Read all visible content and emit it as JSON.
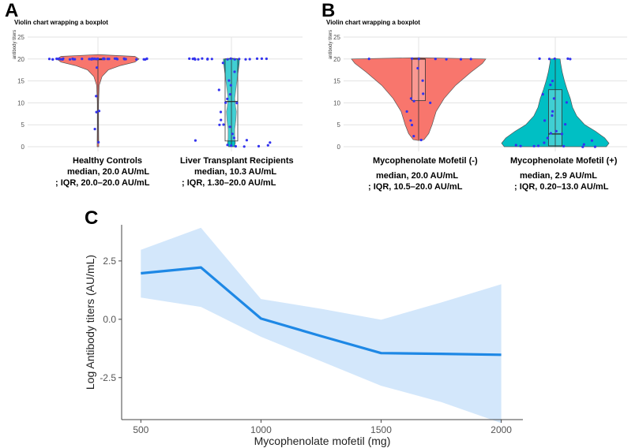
{
  "colors": {
    "red": "#F8766D",
    "teal": "#00BFC4",
    "dot": "#3333ee",
    "ribbon": "#d3e7fb",
    "line": "#1e88e5",
    "grid": "#e3e3e3"
  },
  "panelA": {
    "label": "A",
    "title": "Violin chart wrapping a boxplot",
    "ylabel": "antibody titers",
    "ticks": [
      "0",
      "5",
      "10",
      "15",
      "20",
      "25"
    ],
    "groups": [
      {
        "name": "Healthy Controls",
        "median": "median, 20.0 AU/mL",
        "iqr": "; IQR, 20.0–20.0 AU/mL"
      },
      {
        "name": "Liver Transplant Recipients",
        "median": "median, 10.3 AU/mL",
        "iqr": "; IQR, 1.30–20.0 AU/mL"
      }
    ]
  },
  "panelB": {
    "label": "B",
    "title": "Violin chart wrapping a boxplot",
    "ylabel": "antibody titers",
    "ticks": [
      "0",
      "5",
      "10",
      "15",
      "20",
      "25"
    ],
    "groups": [
      {
        "name": "Mycophenolate Mofetil (-)",
        "median": "median, 20.0 AU/mL",
        "iqr": "; IQR, 10.5–20.0 AU/mL"
      },
      {
        "name": "Mycophenolate Mofetil (+)",
        "median": "median, 2.9 AU/mL",
        "iqr": "; IQR, 0.20–13.0 AU/mL"
      }
    ]
  },
  "panelC": {
    "label": "C"
  },
  "chart_data": [
    {
      "type": "violin",
      "title": "Violin chart wrapping a boxplot",
      "ylabel": "antibody titers",
      "ylim": [
        0,
        25
      ],
      "categories": [
        "Healthy Controls",
        "Liver Transplant Recipients"
      ],
      "series": [
        {
          "name": "Healthy Controls",
          "median": 20.0,
          "q1": 20.0,
          "q3": 20.0,
          "points": [
            20,
            20,
            20,
            20,
            20,
            20,
            20,
            20,
            20,
            20,
            20,
            20,
            20,
            20,
            20,
            20,
            20,
            20,
            20,
            20,
            20,
            20,
            20,
            20,
            20,
            20,
            20,
            20,
            20,
            20,
            20,
            20,
            20,
            20,
            20,
            20,
            20,
            20,
            20,
            20,
            20,
            18,
            11.5,
            8.2,
            8,
            4,
            1
          ]
        },
        {
          "name": "Liver Transplant Recipients",
          "median": 10.3,
          "q1": 1.3,
          "q3": 20.0,
          "points": [
            20,
            20,
            20,
            20,
            20,
            20,
            20,
            20,
            20,
            20,
            20,
            20,
            20,
            20,
            20,
            20,
            20,
            20,
            19,
            17,
            15,
            14,
            13,
            12,
            11,
            10,
            10,
            8,
            6,
            5,
            5,
            4.5,
            3,
            2,
            1.5,
            1.5,
            1,
            0.5,
            0.3,
            0.3,
            0.2,
            0.2,
            0.1
          ]
        }
      ]
    },
    {
      "type": "violin",
      "title": "Violin chart wrapping a boxplot",
      "ylabel": "antibody titers",
      "ylim": [
        0,
        25
      ],
      "categories": [
        "Mycophenolate Mofetil (-)",
        "Mycophenolate Mofetil (+)"
      ],
      "series": [
        {
          "name": "Mycophenolate Mofetil (-)",
          "median": 20.0,
          "q1": 10.5,
          "q3": 20.0,
          "points": [
            20,
            20,
            20,
            20,
            20,
            20,
            20,
            18,
            15,
            12,
            11,
            10.3,
            10,
            8,
            6,
            5,
            2.5,
            1.5
          ]
        },
        {
          "name": "Mycophenolate Mofetil (+)",
          "median": 2.9,
          "q1": 0.2,
          "q3": 13.0,
          "points": [
            20,
            20,
            20,
            20,
            20,
            15,
            14,
            12,
            11,
            10,
            8,
            7,
            6,
            5,
            3.5,
            3,
            2.9,
            2,
            1.5,
            1,
            0.5,
            0.3,
            0.2,
            0.2,
            0.1,
            0.1,
            0,
            0
          ]
        }
      ]
    },
    {
      "type": "line",
      "xlabel": "Mycophenolate mofetil (mg)",
      "ylabel": "Log Antibody titers (AU/mL)",
      "xlim": [
        420,
        2090
      ],
      "ylim": [
        -4.3,
        4.05
      ],
      "xticks": [
        500,
        1000,
        1500,
        2000
      ],
      "yticks": [
        "2.5",
        "0.0",
        "-2.5"
      ],
      "ytick_values": [
        2.5,
        0.0,
        -2.5
      ],
      "x": [
        500,
        750,
        1000,
        1250,
        1500,
        1750,
        2000
      ],
      "y": [
        1.97,
        2.22,
        0.03,
        -0.72,
        -1.45,
        -1.48,
        -1.52
      ],
      "lower": [
        0.93,
        0.53,
        -0.75,
        -1.8,
        -2.85,
        -3.55,
        -4.45
      ],
      "upper": [
        2.98,
        3.92,
        0.87,
        0.45,
        -0.02,
        0.72,
        1.5
      ]
    }
  ]
}
